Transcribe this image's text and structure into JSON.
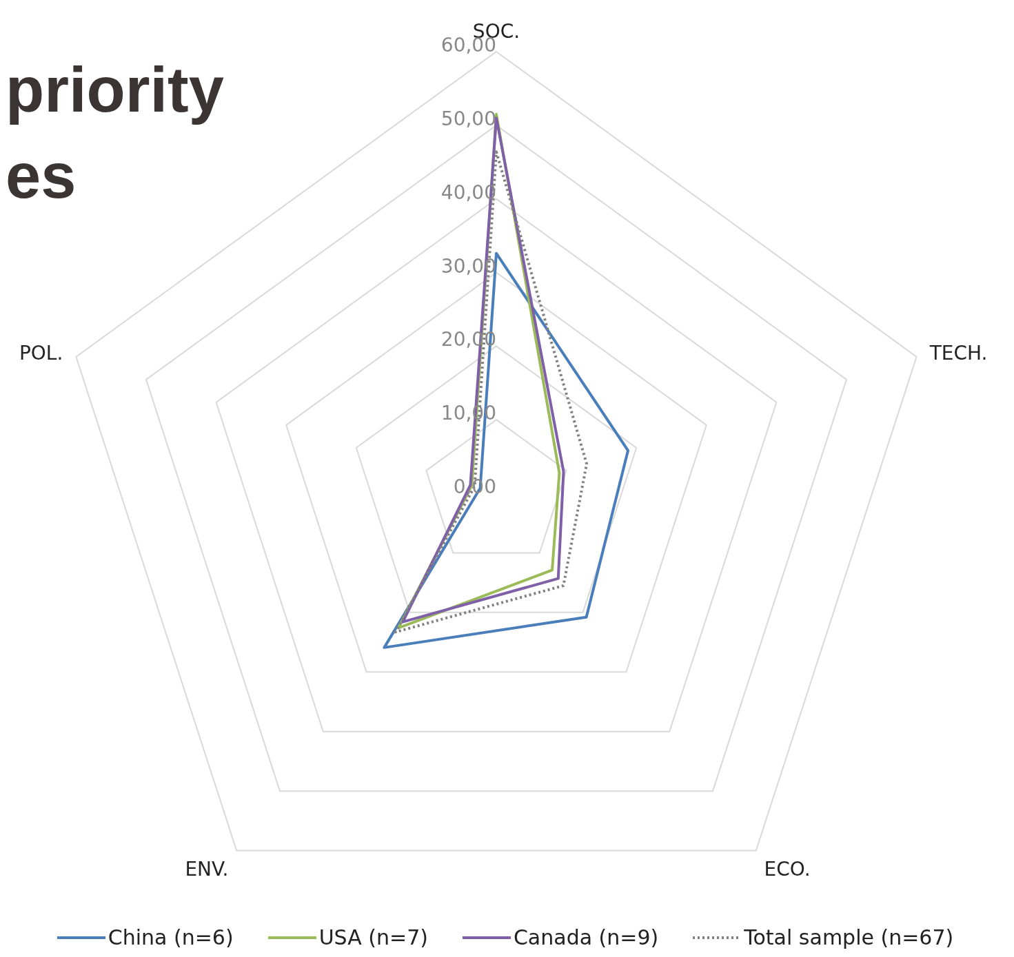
{
  "chart_data": {
    "type": "radar",
    "annotations": [
      "priority",
      "es"
    ],
    "categories": [
      "SOC.",
      "TECH.",
      "ECO.",
      "ENV.",
      "POL."
    ],
    "ylim": [
      0,
      60
    ],
    "yticks": [
      {
        "value": 0,
        "label": "0,00"
      },
      {
        "value": 10,
        "label": "10,00"
      },
      {
        "value": 20,
        "label": "20,00"
      },
      {
        "value": 30,
        "label": "30,00"
      },
      {
        "value": 40,
        "label": "40,00"
      },
      {
        "value": 50,
        "label": "50,00"
      },
      {
        "value": 60,
        "label": "60,00"
      }
    ],
    "grid": true,
    "legend": "bottom",
    "marker": "none",
    "series": [
      {
        "name": "China (n=6)",
        "color": "#4a7ebb",
        "line_style": "solid",
        "values": [
          32.6,
          18.8,
          20.8,
          25.9,
          2.3
        ]
      },
      {
        "name": "USA (n=7)",
        "color": "#9bbb59",
        "line_style": "solid",
        "values": [
          51.5,
          9.0,
          12.9,
          22.6,
          3.5
        ]
      },
      {
        "name": "Canada (n=9)",
        "color": "#7f5fa8",
        "line_style": "solid",
        "values": [
          51.0,
          9.6,
          14.3,
          21.6,
          3.7
        ]
      },
      {
        "name": "Total sample (n=67)",
        "color": "#808080",
        "line_style": "dotted",
        "values": [
          46.4,
          12.9,
          15.5,
          23.3,
          3.1
        ]
      }
    ]
  }
}
